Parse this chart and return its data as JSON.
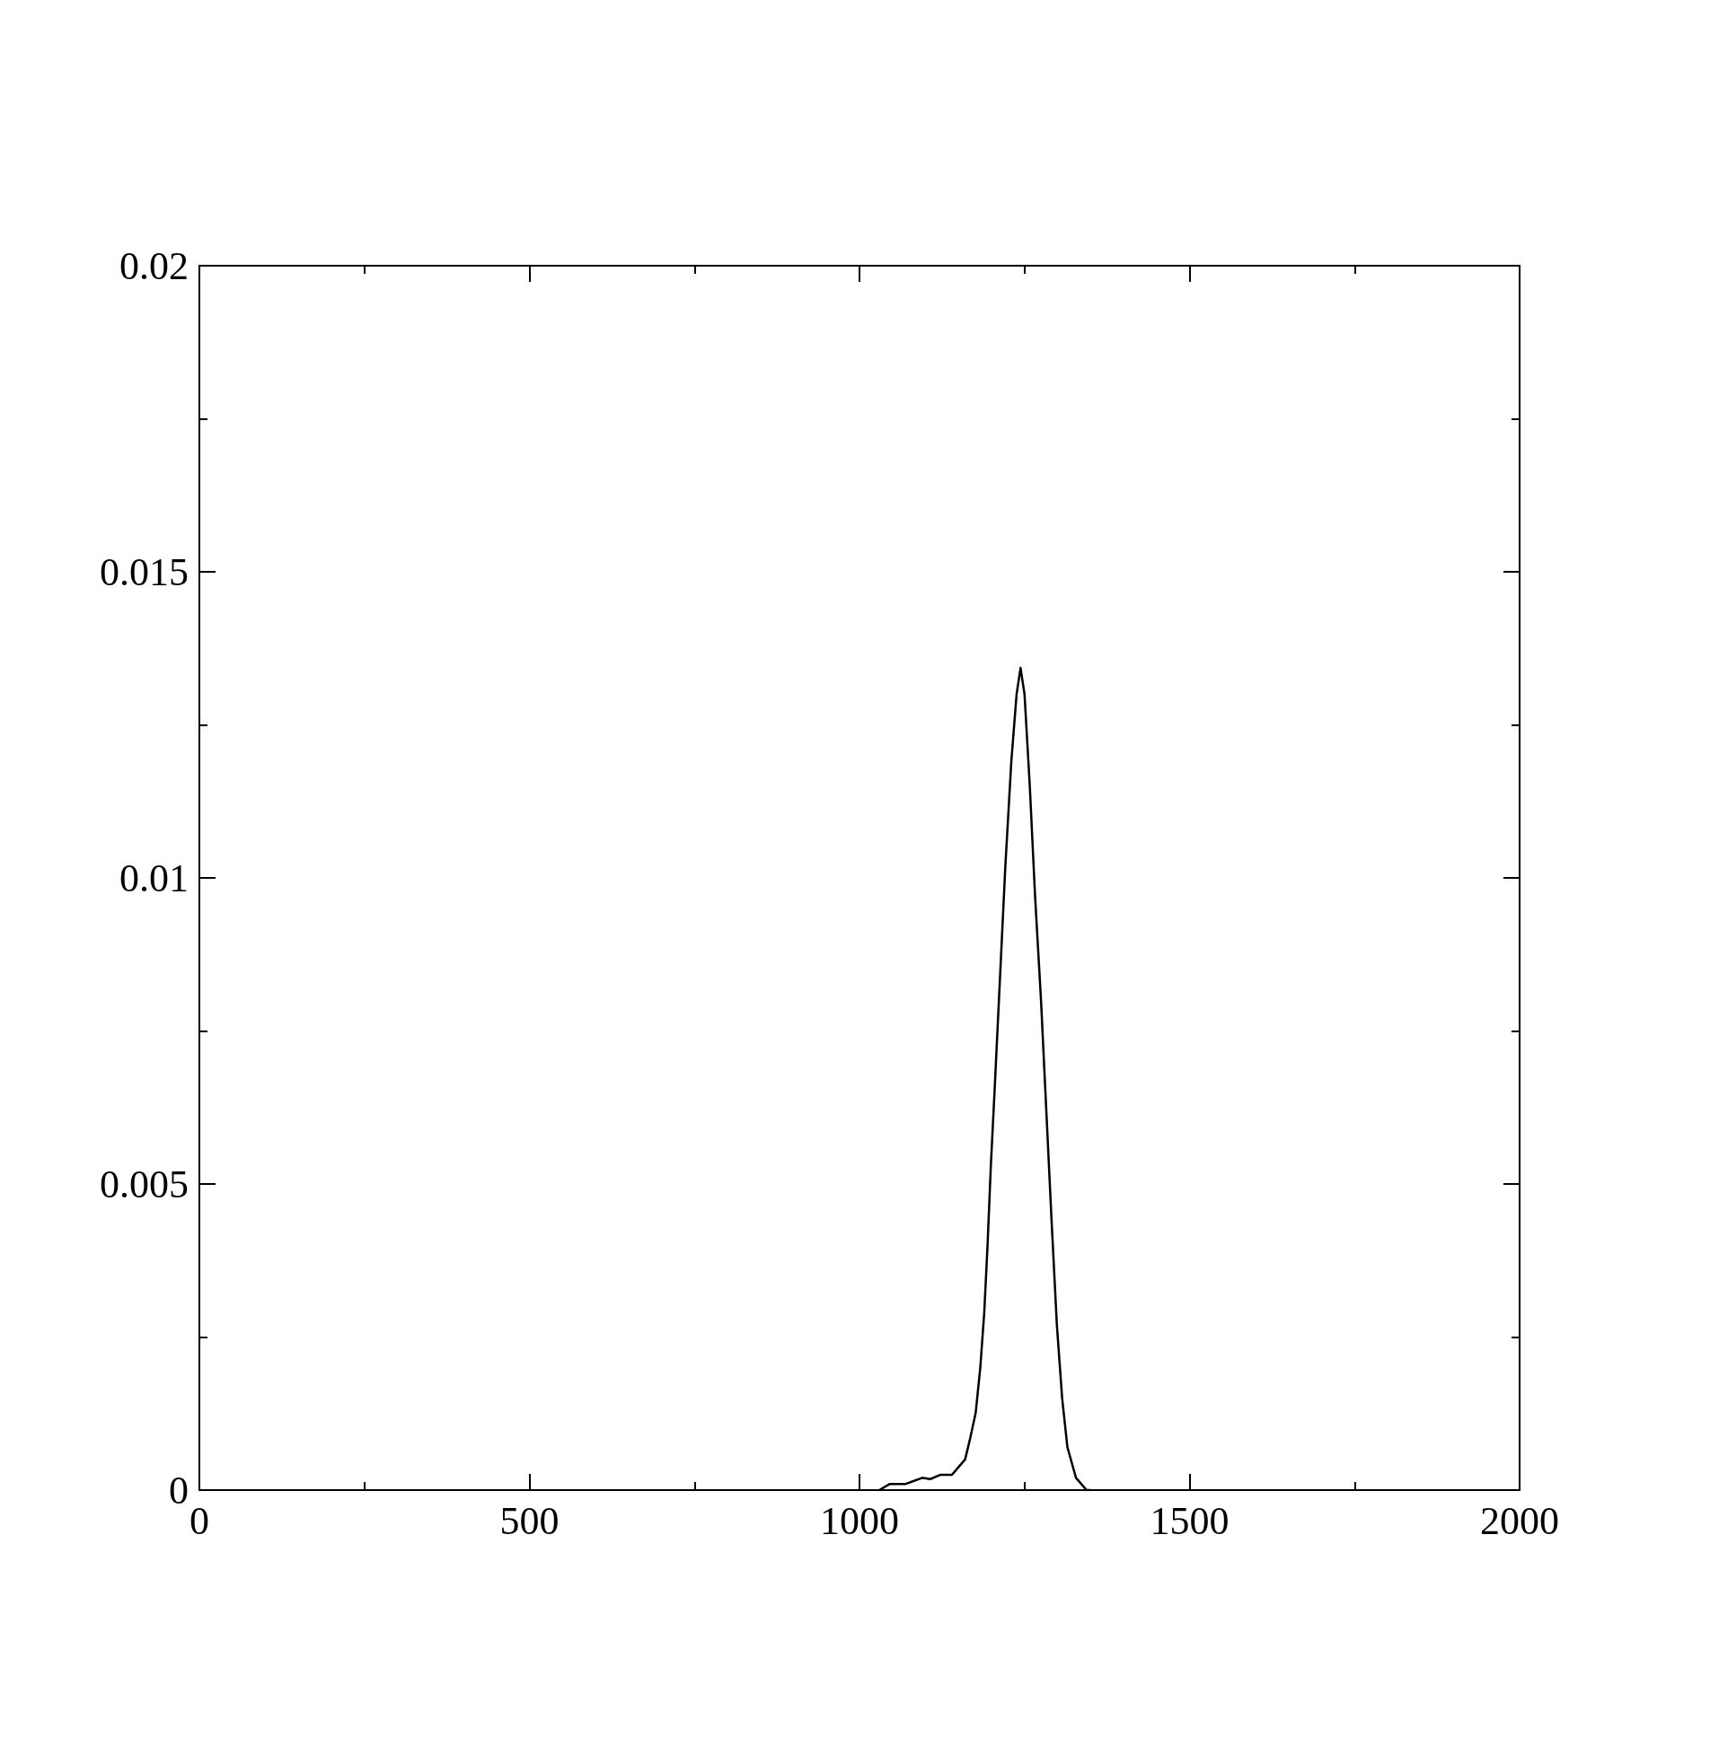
{
  "chart_data": {
    "type": "line",
    "series": [
      {
        "color": "#000000",
        "x": [
          1030,
          1046,
          1070,
          1095,
          1107,
          1123,
          1140,
          1148,
          1160,
          1168,
          1176,
          1183,
          1189,
          1194,
          1199,
          1205,
          1213,
          1221,
          1230,
          1238,
          1244,
          1250,
          1258,
          1266,
          1275,
          1283,
          1291,
          1299,
          1307,
          1315,
          1328,
          1344,
          1350
        ],
        "values": [
          0,
          0.0001,
          0.0001,
          0.0002,
          0.00018,
          0.00025,
          0.00025,
          0.00035,
          0.0005,
          0.00086,
          0.00126,
          0.002,
          0.0029,
          0.004,
          0.0053,
          0.0066,
          0.0084,
          0.0102,
          0.0119,
          0.013,
          0.01343,
          0.013,
          0.0115,
          0.0097,
          0.008,
          0.0062,
          0.0044,
          0.0027,
          0.0015,
          0.0007,
          0.0002,
          0,
          0
        ]
      }
    ],
    "xlim": [
      0,
      2000
    ],
    "xticks": [
      0,
      {
        "value": 250,
        "label": null
      },
      500,
      {
        "value": 750,
        "label": null
      },
      1000,
      {
        "value": 1250,
        "label": null
      },
      1500,
      {
        "value": 1750,
        "label": null
      },
      2000
    ],
    "ylim": [
      0,
      0.02
    ],
    "yticks": [
      0,
      {
        "value": 0.0025,
        "label": null
      },
      0.005,
      {
        "value": 0.0075,
        "label": null
      },
      0.01,
      {
        "value": 0.0125,
        "label": null
      },
      0.015,
      {
        "value": 0.0175,
        "label": null
      },
      0.02
    ],
    "marker": "none",
    "line_style": "solid"
  }
}
